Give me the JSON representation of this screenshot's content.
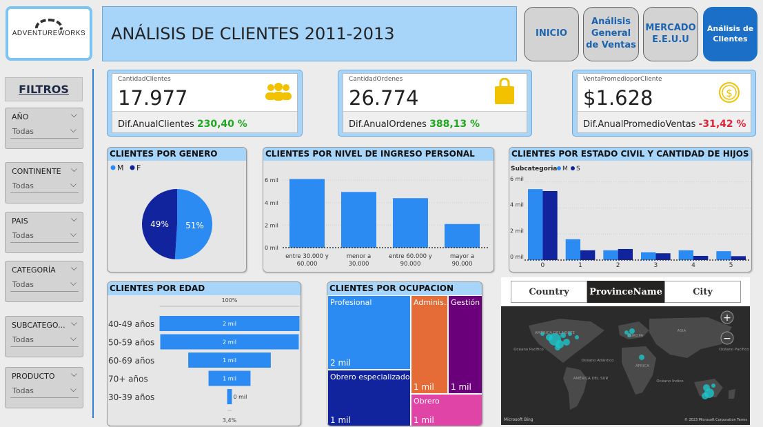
{
  "header": {
    "logo_text": "ADVENTUREWORKS",
    "title": "ANÁLISIS DE CLIENTES 2011-2013",
    "nav": [
      "INICIO",
      "Análisis General de Ventas",
      "MERCADO E.E.U.U",
      "Análisis de Clientes"
    ]
  },
  "filters": {
    "title": "FILTROS",
    "items": [
      {
        "label": "AÑO",
        "value": "Todas"
      },
      {
        "label": "CONTINENTE",
        "value": "Todas"
      },
      {
        "label": "PAIS",
        "value": "Todas"
      },
      {
        "label": "CATEGORÍA",
        "value": "Todas"
      },
      {
        "label": "SUBCATEGO...",
        "value": "Todas"
      },
      {
        "label": "PRODUCTO",
        "value": "Todas"
      }
    ]
  },
  "kpis": [
    {
      "caption": "CantidadClientes",
      "value": "17.977",
      "diff_label": "Dif.AnualClientes",
      "diff_value": "230,40 %",
      "icon": "people-icon",
      "color": "#f2c200"
    },
    {
      "caption": "CantidadOrdenes",
      "value": "26.774",
      "diff_label": "Dif.AnualOrdenes",
      "diff_value": "388,13 %",
      "icon": "shopping-bag-icon",
      "color": "#f2c200"
    },
    {
      "caption": "VentaPromedioporCliente",
      "value": "$1.628",
      "diff_label": "Dif.AnualPromedioVentas",
      "diff_value": "-31,42 %",
      "icon": "coin-icon",
      "color": "#f2c200"
    }
  ],
  "chart_data": [
    {
      "type": "pie",
      "title": "CLIENTES POR GENERO",
      "categories": [
        "M",
        "F"
      ],
      "values": [
        51,
        49
      ],
      "labels": [
        "51%",
        "49%"
      ],
      "colors": [
        "#2b8bf2",
        "#12239e"
      ],
      "legend": "top-left"
    },
    {
      "type": "bar",
      "title": "CLIENTES POR NIVEL DE INGRESO PERSONAL",
      "categories": [
        "entre 30.000 y 60.000",
        "menor a 30.000",
        "entre 60.000 y 90.000",
        "mayor a 90.000"
      ],
      "values": [
        6100,
        4950,
        4400,
        2100
      ],
      "yticks": [
        "0 mil",
        "2 mil",
        "4 mil",
        "6 mil"
      ],
      "ylim": [
        0,
        6500
      ],
      "color": "#2b8bf2"
    },
    {
      "type": "bar",
      "title": "CLIENTES POR ESTADO CIVIL Y CANTIDAD DE HIJOS",
      "legend_title": "Subcategoria",
      "categories": [
        "0",
        "1",
        "2",
        "3",
        "4",
        "5"
      ],
      "series": [
        {
          "name": "M",
          "values": [
            5450,
            1600,
            750,
            600,
            750,
            680
          ],
          "color": "#2b8bf2"
        },
        {
          "name": "S",
          "values": [
            5300,
            750,
            850,
            520,
            320,
            300
          ],
          "color": "#12239e"
        }
      ],
      "yticks": [
        "0 mil",
        "2 mil",
        "4 mil",
        "6 mil"
      ],
      "ylim": [
        0,
        6200
      ]
    },
    {
      "type": "bar",
      "title": "CLIENTES POR EDAD",
      "categories": [
        "40-49 años",
        "50-59 años",
        "60-69 años",
        "70+ años",
        "30-39 años"
      ],
      "values": [
        100,
        99,
        59,
        30,
        3.4
      ],
      "labels": [
        "2 mil",
        "2 mil",
        "1 mil",
        "1 mil",
        "0 mil"
      ],
      "top_label": "100%",
      "bottom_label": "3,4%",
      "color": "#2b8bf2"
    },
    {
      "type": "heatmap",
      "title": "CLIENTES POR OCUPACION",
      "cells": [
        {
          "name": "Profesional",
          "value": "2 mil",
          "color": "#2b8bf2"
        },
        {
          "name": "Obrero especializado",
          "value": "1 mil",
          "color": "#12239e"
        },
        {
          "name": "Adminis...",
          "value": "1 mil",
          "color": "#e66c37"
        },
        {
          "name": "Gestión",
          "value": "1 mil",
          "color": "#6b007b"
        },
        {
          "name": "Obrero",
          "value": "1 mil",
          "color": "#e044a7"
        }
      ]
    }
  ],
  "map": {
    "tabs": [
      "Country",
      "ProvinceName",
      "City"
    ],
    "selected": "ProvinceName",
    "labels": [
      "AMÉRICA DEL NORTE",
      "EUROPA",
      "ASIA",
      "Océano Pacífico",
      "Océano Atlántico",
      "ÁFRICA",
      "AMÉRICA DEL SUR",
      "Océano Índico",
      "Océano Pacífico"
    ],
    "attribution": "© 2023 Microsoft Corporation  Terms",
    "bing": "Microsoft Bing",
    "zoom_in": "+",
    "zoom_out": "−"
  }
}
